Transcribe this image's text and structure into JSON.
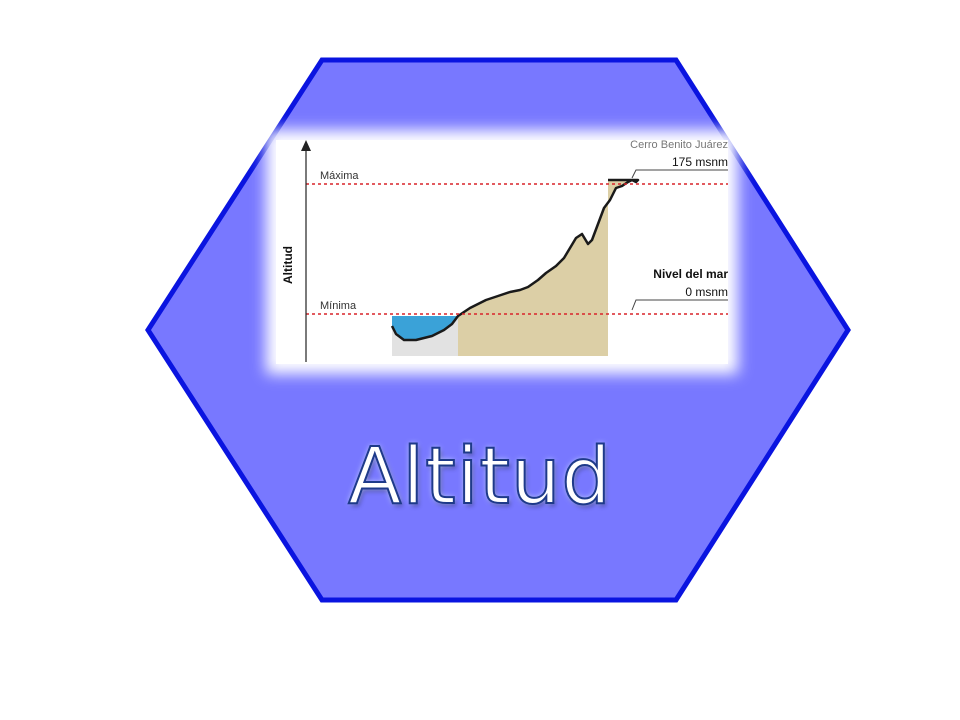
{
  "title": "Altitud",
  "diagram": {
    "axis_label": "Altitud",
    "max_label": "Máxima",
    "min_label": "Mínima",
    "peak_name": "Cerro Benito Juárez",
    "peak_altitude": "175 msnm",
    "sea_label": "Nivel del mar",
    "sea_altitude": "0 msnm"
  },
  "colors": {
    "hexagon_fill": "#7878ff",
    "hexagon_stroke": "#0a14e0",
    "terrain": "#dccfa6",
    "water": "#3aa2d8",
    "reference_line": "#d9242a"
  }
}
